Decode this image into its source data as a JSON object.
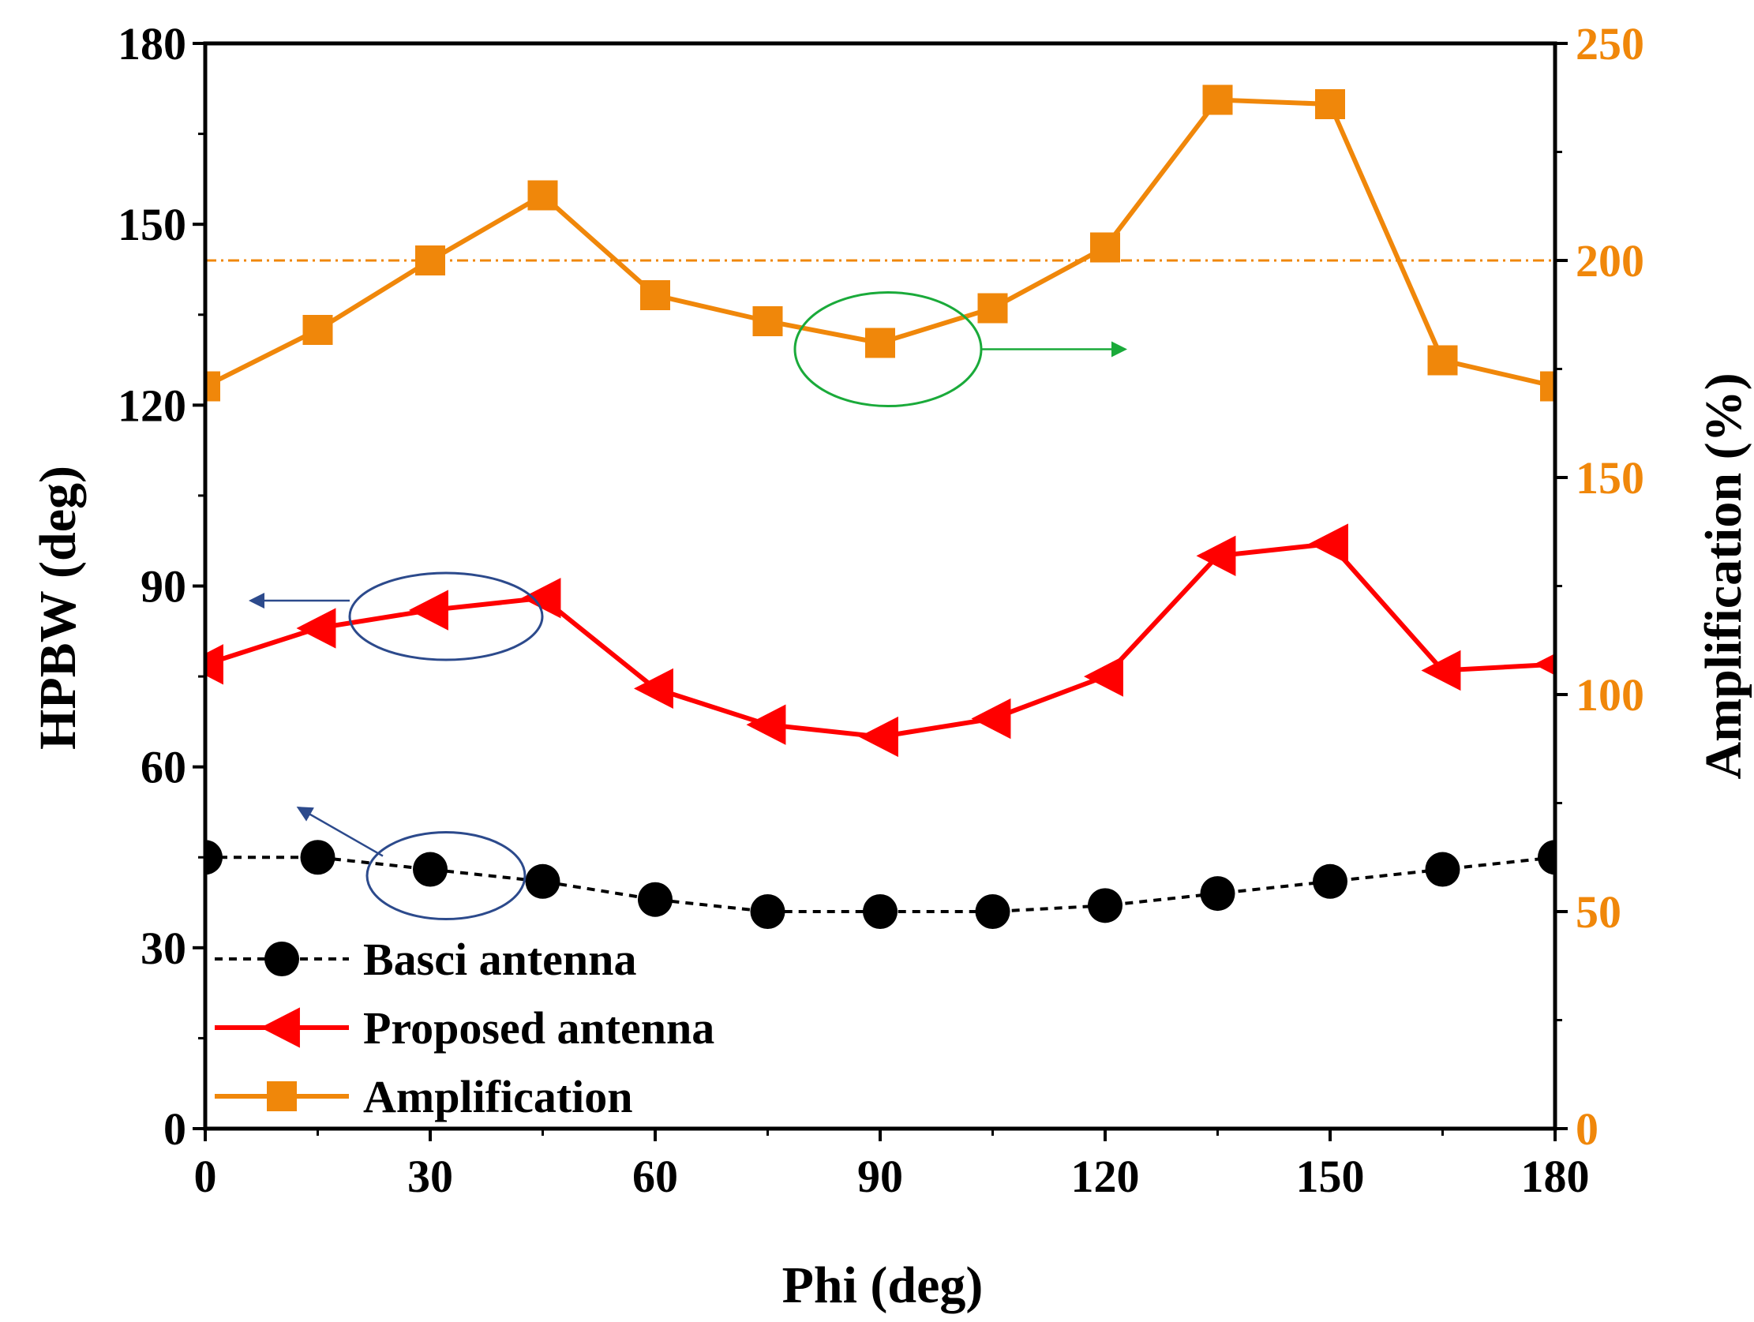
{
  "chart_data": {
    "type": "line",
    "x": [
      0,
      15,
      30,
      45,
      60,
      75,
      90,
      105,
      120,
      135,
      150,
      165,
      180
    ],
    "xlabel": "Phi (deg)",
    "xlim": [
      0,
      180
    ],
    "xticks": [
      "0",
      "30",
      "60",
      "90",
      "120",
      "150",
      "180"
    ],
    "ylabel": "HPBW (deg)",
    "ylim": [
      0,
      180
    ],
    "yticks": [
      "0",
      "30",
      "60",
      "90",
      "120",
      "150",
      "180"
    ],
    "y2label": "Amplification (%)",
    "y2lim": [
      0,
      250
    ],
    "y2ticks": [
      "0",
      "50",
      "100",
      "150",
      "200",
      "250"
    ],
    "reference_line": {
      "axis": "y2",
      "value": 200,
      "color": "#f0870a"
    },
    "series": [
      {
        "name": "Basci antenna",
        "axis": "y",
        "color": "#000000",
        "marker": "circle",
        "dashed": true,
        "values": [
          45,
          45,
          43,
          41,
          38,
          36,
          36,
          36,
          37,
          39,
          41,
          43,
          45
        ]
      },
      {
        "name": "Proposed antenna",
        "axis": "y",
        "color": "#ff0000",
        "marker": "triangle-left",
        "dashed": false,
        "values": [
          77,
          83,
          86,
          88,
          73,
          67,
          65,
          68,
          75,
          95,
          97,
          76,
          77
        ]
      },
      {
        "name": "Amplification",
        "axis": "y2",
        "color": "#f0870a",
        "marker": "square",
        "dashed": false,
        "values": [
          171,
          184,
          200,
          215,
          192,
          186,
          181,
          189,
          203,
          237,
          236,
          177,
          171
        ]
      }
    ],
    "annotations": [
      {
        "target_series": "Amplification",
        "at_x": 90,
        "points_to": "right axis",
        "color": "#1aaa3a"
      },
      {
        "target_series": "Proposed antenna",
        "at_x": 30,
        "points_to": "left axis",
        "color": "#2c4a8c"
      },
      {
        "target_series": "Basci antenna",
        "at_x": 30,
        "points_to": "left axis",
        "color": "#2c4a8c"
      }
    ],
    "legend_position": "bottom-left"
  }
}
